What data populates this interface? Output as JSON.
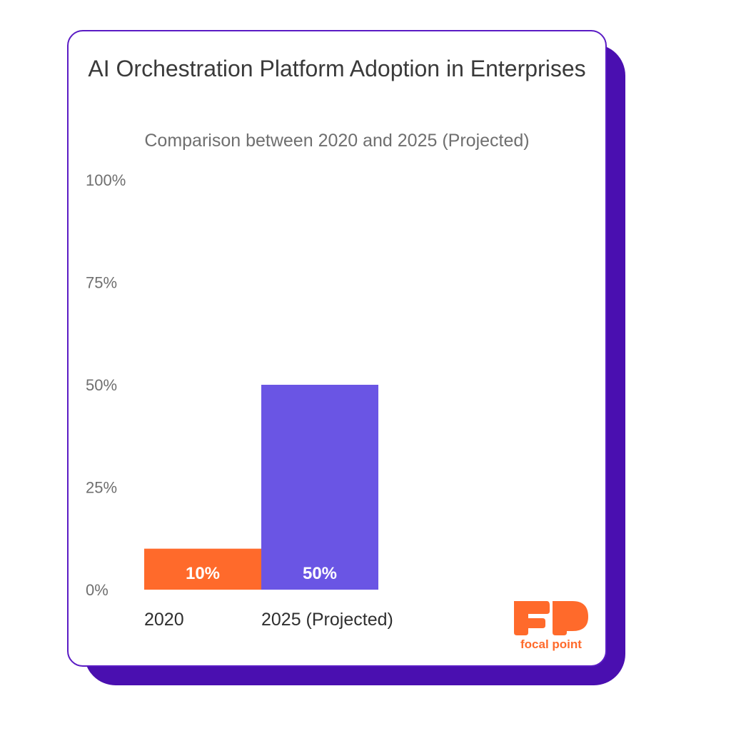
{
  "chart_data": {
    "type": "bar",
    "title": "AI Orchestration Platform Adoption in Enterprises",
    "subtitle": "Comparison between 2020 and 2025 (Projected)",
    "categories": [
      "2020",
      "2025 (Projected)"
    ],
    "values": [
      10,
      50
    ],
    "value_labels": [
      "10%",
      "50%"
    ],
    "colors": [
      "#ff6a2b",
      "#6a55e4"
    ],
    "ylim": [
      0,
      100
    ],
    "yticks": [
      0,
      25,
      50,
      75,
      100
    ],
    "ytick_labels": [
      "0%",
      "25%",
      "50%",
      "75%",
      "100%"
    ],
    "grid": false,
    "xlabel": "",
    "ylabel": ""
  },
  "logo": {
    "mark": "FP",
    "wordmark": "focal point",
    "color": "#ff6a2b"
  }
}
